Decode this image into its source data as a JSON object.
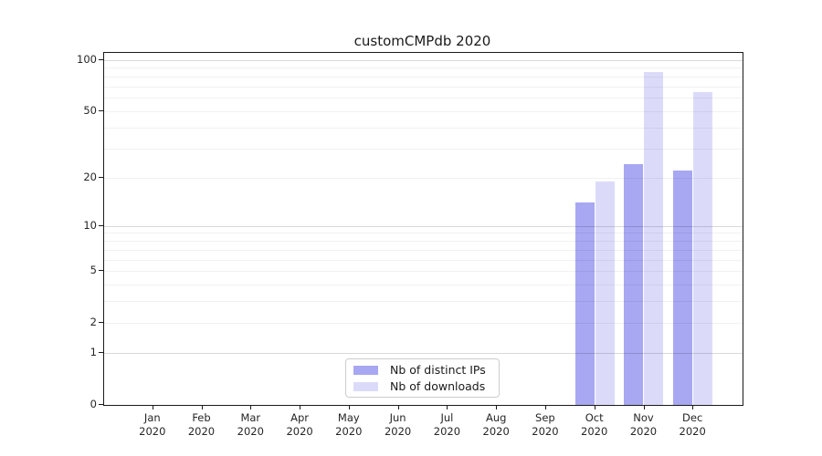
{
  "chart_data": {
    "type": "bar",
    "title": "customCMPdb 2020",
    "x_months": [
      "Jan",
      "Feb",
      "Mar",
      "Apr",
      "May",
      "Jun",
      "Jul",
      "Aug",
      "Sep",
      "Oct",
      "Nov",
      "Dec"
    ],
    "x_year": "2020",
    "series": [
      {
        "name": "Nb of distinct IPs",
        "color": "#a7a7f2",
        "values": [
          null,
          null,
          null,
          null,
          null,
          null,
          null,
          null,
          null,
          14,
          24,
          22
        ]
      },
      {
        "name": "Nb of downloads",
        "color": "#dbdbf9",
        "values": [
          null,
          null,
          null,
          null,
          null,
          null,
          null,
          null,
          null,
          19,
          85,
          65
        ]
      }
    ],
    "yscale": "symlog1p",
    "yticks": [
      0,
      1,
      2,
      5,
      10,
      20,
      50,
      100
    ],
    "ylim": [
      0,
      110
    ],
    "grid": "horizontal",
    "legend_position": "bottom-center"
  }
}
